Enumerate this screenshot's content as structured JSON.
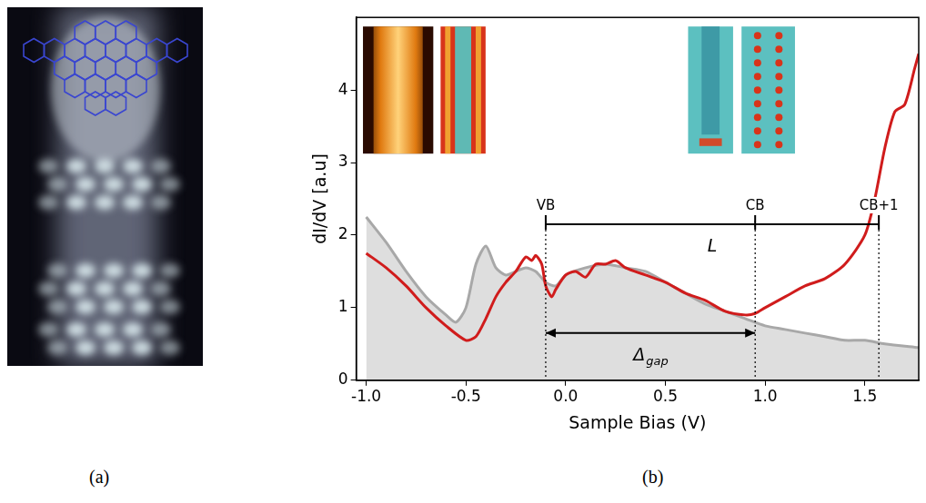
{
  "panel_labels": [
    "(a)",
    "(b)"
  ],
  "chart_data": {
    "type": "line",
    "x_label": "Sample Bias (V)",
    "y_label": "dI/dV [a.u]",
    "xlim": [
      -1.05,
      1.77
    ],
    "ylim": [
      0,
      5
    ],
    "xticks": [
      {
        "value": -1,
        "label": "-1.0"
      },
      -0.5,
      {
        "value": 0,
        "label": "0.0"
      },
      0.5,
      {
        "value": 1,
        "label": "1.0"
      },
      1.5
    ],
    "yticks": [
      0,
      1,
      2,
      3,
      4
    ],
    "grid": false,
    "series": [
      {
        "color": "#d01c1c",
        "x": [
          -1.0,
          -0.9,
          -0.8,
          -0.7,
          -0.6,
          -0.5,
          -0.45,
          -0.4,
          -0.35,
          -0.3,
          -0.25,
          -0.2,
          -0.17,
          -0.15,
          -0.12,
          -0.1,
          -0.07,
          -0.05,
          0.0,
          0.05,
          0.1,
          0.15,
          0.2,
          0.25,
          0.3,
          0.4,
          0.5,
          0.6,
          0.7,
          0.8,
          0.9,
          0.95,
          1.0,
          1.1,
          1.2,
          1.3,
          1.4,
          1.5,
          1.55,
          1.6,
          1.65,
          1.7,
          1.75,
          1.77
        ],
        "values": [
          1.75,
          1.55,
          1.3,
          1.0,
          0.75,
          0.55,
          0.6,
          0.85,
          1.15,
          1.35,
          1.5,
          1.7,
          1.65,
          1.72,
          1.6,
          1.3,
          1.15,
          1.25,
          1.45,
          1.5,
          1.42,
          1.6,
          1.6,
          1.65,
          1.55,
          1.45,
          1.35,
          1.2,
          1.1,
          0.95,
          0.9,
          0.92,
          1.0,
          1.15,
          1.3,
          1.4,
          1.6,
          2.0,
          2.5,
          3.2,
          3.7,
          3.8,
          4.3,
          4.5
        ]
      },
      {
        "color": "#a8a8a8",
        "x": [
          -1.0,
          -0.9,
          -0.8,
          -0.7,
          -0.6,
          -0.55,
          -0.5,
          -0.45,
          -0.4,
          -0.35,
          -0.3,
          -0.25,
          -0.2,
          -0.15,
          -0.1,
          -0.05,
          0.0,
          0.1,
          0.2,
          0.3,
          0.4,
          0.5,
          0.6,
          0.7,
          0.8,
          0.9,
          1.0,
          1.1,
          1.2,
          1.3,
          1.4,
          1.5,
          1.6,
          1.77
        ],
        "values": [
          2.25,
          1.9,
          1.5,
          1.15,
          0.9,
          0.8,
          1.0,
          1.6,
          1.85,
          1.55,
          1.45,
          1.5,
          1.55,
          1.5,
          1.35,
          1.3,
          1.45,
          1.55,
          1.6,
          1.55,
          1.5,
          1.35,
          1.2,
          1.05,
          0.95,
          0.85,
          0.75,
          0.7,
          0.65,
          0.6,
          0.55,
          0.55,
          0.5,
          0.45
        ]
      }
    ],
    "annotations": [
      {
        "text": "VB",
        "x": -0.1
      },
      {
        "text": "CB",
        "x": 0.95
      },
      {
        "text": "CB+1",
        "x": 1.57
      }
    ],
    "brackets": [
      {
        "text": "L",
        "from": -0.1,
        "to": 1.57,
        "y": 2.15,
        "marker": "none"
      },
      {
        "text": "Δgap",
        "from": -0.1,
        "to": 0.95,
        "y": 0.65,
        "marker": "arrow"
      }
    ]
  }
}
